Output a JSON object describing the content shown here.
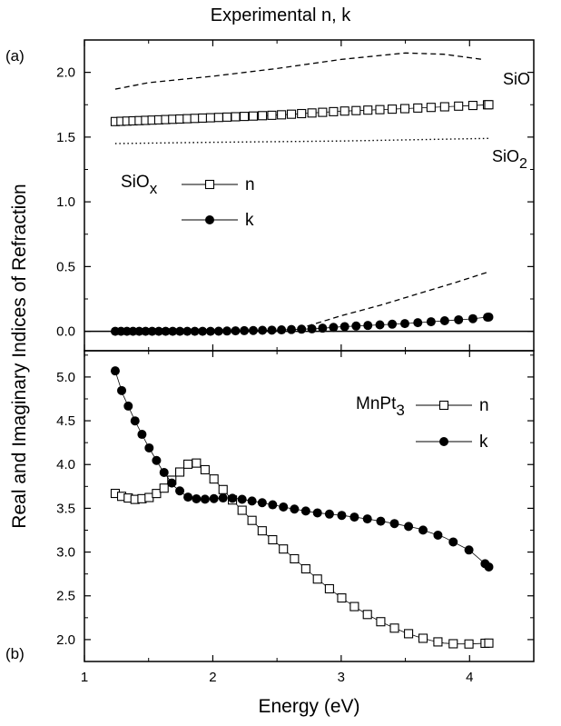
{
  "title": "Experimental n, k",
  "xlabel": "Energy (eV)",
  "ylabel": "Real and Imaginary Indices of Refraction",
  "panel_a_label": "(a)",
  "panel_b_label": "(b)",
  "chart_data": [
    {
      "type": "line",
      "panel": "(a)",
      "xlim": [
        1,
        4.5
      ],
      "ylim": [
        -0.15,
        2.25
      ],
      "xticks": [
        "1",
        "2",
        "3",
        "4"
      ],
      "yticks": [
        "0.0",
        "0.5",
        "1.0",
        "1.5",
        "2.0"
      ],
      "legend": {
        "group_label": "SiOx",
        "n_label": "n",
        "k_label": "k",
        "placement": "center-left"
      },
      "reference_labels": {
        "sio": "SiO",
        "sio2": "SiO2"
      },
      "series": [
        {
          "name": "n",
          "style": "open-square",
          "x": [
            1.24,
            1.5,
            2.0,
            2.5,
            3.0,
            3.5,
            4.15
          ],
          "y": [
            1.62,
            1.63,
            1.65,
            1.67,
            1.7,
            1.72,
            1.75
          ]
        },
        {
          "name": "k",
          "style": "filled-circle",
          "x": [
            1.24,
            1.5,
            2.0,
            2.5,
            2.8,
            3.0,
            3.5,
            4.0,
            4.15
          ],
          "y": [
            0.0,
            0.0,
            0.0,
            0.01,
            0.02,
            0.035,
            0.06,
            0.095,
            0.11
          ]
        },
        {
          "name": "SiO",
          "style": "dashed",
          "x": [
            1.24,
            1.5,
            2.0,
            2.5,
            3.0,
            3.5,
            3.8,
            4.1
          ],
          "y": [
            1.87,
            1.92,
            1.97,
            2.03,
            2.1,
            2.15,
            2.14,
            2.1
          ]
        },
        {
          "name": "SiO2",
          "style": "dotted",
          "x": [
            1.24,
            2.0,
            3.0,
            4.15
          ],
          "y": [
            1.45,
            1.46,
            1.47,
            1.49
          ]
        },
        {
          "name": "SiO k",
          "style": "dashed",
          "x": [
            2.6,
            2.8,
            3.0,
            3.3,
            3.6,
            3.9,
            4.15
          ],
          "y": [
            0.0,
            0.06,
            0.12,
            0.2,
            0.29,
            0.38,
            0.46
          ]
        }
      ]
    },
    {
      "type": "line",
      "panel": "(b)",
      "xlim": [
        1,
        4.5
      ],
      "ylim": [
        1.75,
        5.3
      ],
      "xticks": [
        "1",
        "2",
        "3",
        "4"
      ],
      "yticks": [
        "2.0",
        "2.5",
        "3.0",
        "3.5",
        "4.0",
        "4.5",
        "5.0"
      ],
      "legend": {
        "group_label": "MnPt3",
        "n_label": "n",
        "k_label": "k",
        "placement": "top-right"
      },
      "series": [
        {
          "name": "n",
          "style": "open-square",
          "x": [
            1.24,
            1.3,
            1.4,
            1.5,
            1.6,
            1.7,
            1.8,
            1.85,
            1.9,
            2.0,
            2.1,
            2.2,
            2.3,
            2.4,
            2.5,
            2.6,
            2.7,
            2.8,
            2.9,
            3.0,
            3.1,
            3.2,
            3.3,
            3.4,
            3.5,
            3.6,
            3.7,
            3.8,
            3.9,
            4.0,
            4.15
          ],
          "y": [
            3.67,
            3.63,
            3.6,
            3.62,
            3.7,
            3.85,
            4.0,
            4.03,
            4.0,
            3.85,
            3.68,
            3.52,
            3.37,
            3.22,
            3.1,
            2.97,
            2.84,
            2.71,
            2.59,
            2.48,
            2.38,
            2.29,
            2.21,
            2.14,
            2.08,
            2.03,
            1.99,
            1.96,
            1.95,
            1.95,
            1.96
          ]
        },
        {
          "name": "k",
          "style": "filled-circle",
          "x": [
            1.24,
            1.3,
            1.4,
            1.5,
            1.6,
            1.7,
            1.8,
            1.9,
            2.0,
            2.1,
            2.2,
            2.4,
            2.6,
            2.8,
            3.0,
            3.2,
            3.4,
            3.6,
            3.8,
            4.0,
            4.15
          ],
          "y": [
            5.07,
            4.8,
            4.48,
            4.2,
            3.95,
            3.75,
            3.63,
            3.6,
            3.61,
            3.62,
            3.61,
            3.56,
            3.5,
            3.45,
            3.42,
            3.38,
            3.33,
            3.27,
            3.17,
            3.02,
            2.83
          ]
        }
      ]
    }
  ]
}
